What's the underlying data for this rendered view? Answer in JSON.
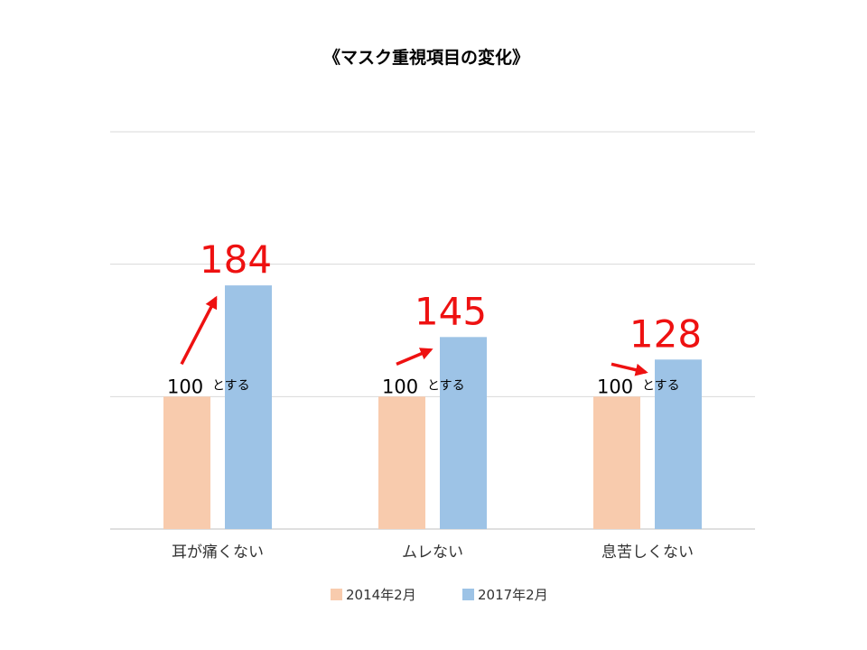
{
  "chart_data": {
    "type": "bar",
    "title": "《マスク重視項目の変化》",
    "categories": [
      "耳が痛くない",
      "ムレない",
      "息苦しくない"
    ],
    "series": [
      {
        "name": "2014年2月",
        "values": [
          100,
          100,
          100
        ],
        "color": "#f8cbad"
      },
      {
        "name": "2017年2月",
        "values": [
          184,
          145,
          128
        ],
        "color": "#9dc3e6"
      }
    ],
    "ylim": [
      0,
      300
    ],
    "grid": true,
    "legend": "bottom",
    "annotations": {
      "values": [
        "184",
        "145",
        "128"
      ],
      "base_value": "100",
      "base_suffix": "とする",
      "arrow_color": "#ee1111"
    }
  }
}
